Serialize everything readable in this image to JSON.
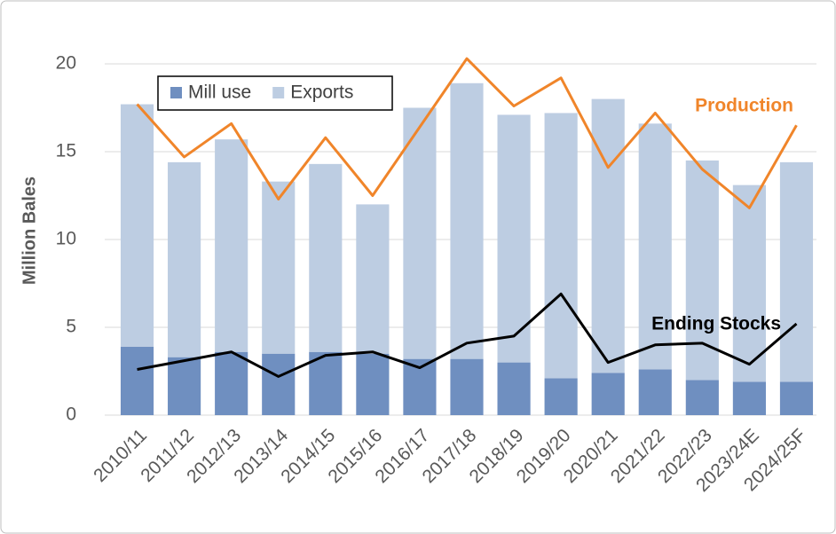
{
  "chart_data": {
    "type": "bar-line",
    "y_label": "Million Bales",
    "categories": [
      "2010/11",
      "2011/12",
      "2012/13",
      "2013/14",
      "2014/15",
      "2015/16",
      "2016/17",
      "2017/18",
      "2018/19",
      "2019/20",
      "2020/21",
      "2021/22",
      "2022/23",
      "2023/24E",
      "2024/25F"
    ],
    "series": [
      {
        "name": "Mill use",
        "kind": "bar",
        "color": "#6f8fc0",
        "values": [
          3.9,
          3.3,
          3.6,
          3.5,
          3.6,
          3.5,
          3.2,
          3.2,
          3.0,
          2.1,
          2.4,
          2.6,
          2.0,
          1.9,
          1.9
        ]
      },
      {
        "name": "Exports",
        "kind": "bar",
        "color": "#bdcde2",
        "values": [
          13.8,
          11.1,
          12.1,
          9.8,
          10.7,
          8.5,
          14.3,
          15.7,
          14.1,
          15.1,
          15.6,
          14.0,
          12.5,
          11.2,
          12.5
        ]
      },
      {
        "name": "Production",
        "kind": "line",
        "color": "#f0852a",
        "values": [
          17.7,
          14.7,
          16.6,
          12.3,
          15.8,
          12.5,
          16.4,
          20.3,
          17.6,
          19.2,
          14.1,
          17.2,
          14.0,
          11.8,
          16.5
        ]
      },
      {
        "name": "Ending Stocks",
        "kind": "line",
        "color": "#000000",
        "values": [
          2.6,
          3.1,
          3.6,
          2.2,
          3.4,
          3.6,
          2.7,
          4.1,
          4.5,
          6.9,
          3.0,
          4.0,
          4.1,
          2.9,
          5.2
        ]
      }
    ],
    "ylim": [
      0,
      20
    ],
    "yticks": [
      0,
      5,
      10,
      15,
      20
    ],
    "grid": true
  }
}
